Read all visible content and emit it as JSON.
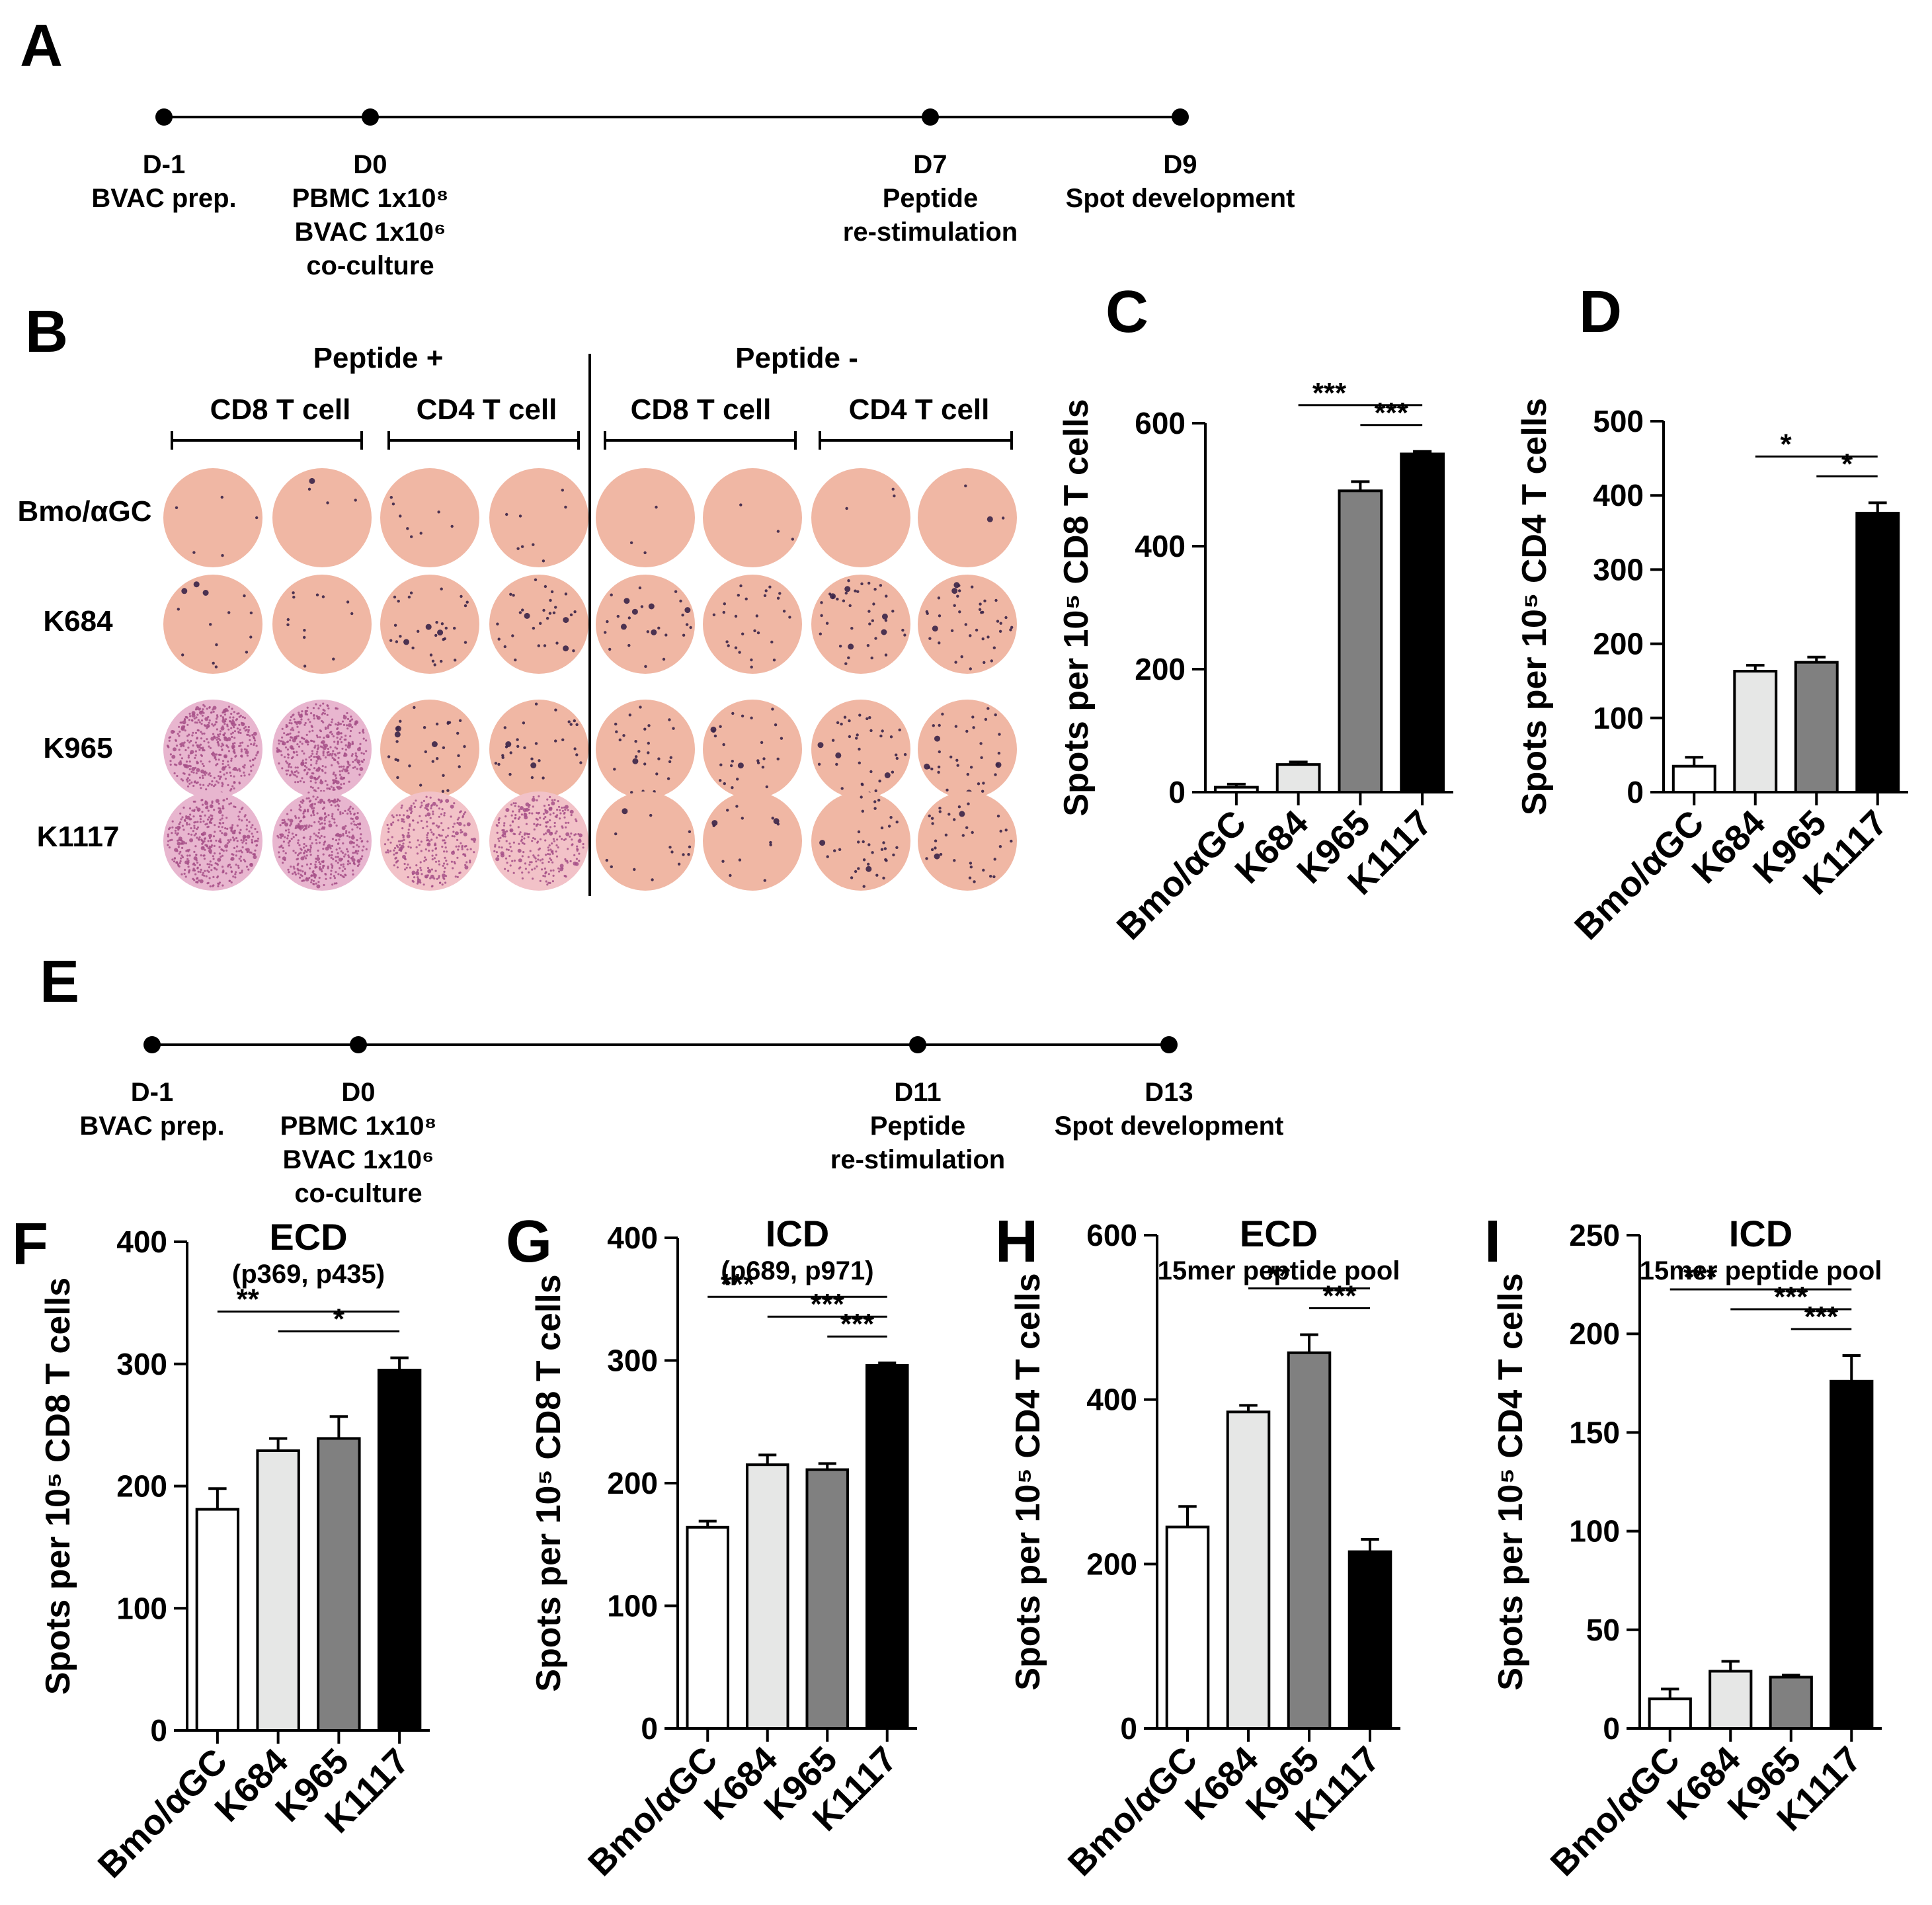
{
  "colors": {
    "white": "#ffffff",
    "light": "#e6e7e6",
    "mid": "#808080",
    "black": "#000000",
    "well": "#f0b7a4",
    "spot": "#3a2448",
    "dense": "#a64f87"
  },
  "timeline_a": {
    "label": "A",
    "points": [
      {
        "lines": [
          "D-1",
          "BVAC prep."
        ]
      },
      {
        "lines": [
          "D0",
          "PBMC 1x10⁸",
          "BVAC 1x10⁶",
          "co-culture"
        ]
      },
      {
        "lines": [
          "D7",
          "Peptide",
          "re-stimulation"
        ]
      },
      {
        "lines": [
          "D9",
          "Spot development"
        ]
      }
    ]
  },
  "timeline_e": {
    "label": "E",
    "points": [
      {
        "lines": [
          "D-1",
          "BVAC prep."
        ]
      },
      {
        "lines": [
          "D0",
          "PBMC 1x10⁸",
          "BVAC 1x10⁶",
          "co-culture"
        ]
      },
      {
        "lines": [
          "D11",
          "Peptide",
          "re-stimulation"
        ]
      },
      {
        "lines": [
          "D13",
          "Spot development"
        ]
      }
    ]
  },
  "elispot": {
    "label": "B",
    "group_labels": [
      "Peptide +",
      "Peptide -"
    ],
    "subgroups": [
      "CD8 T cell",
      "CD4 T cell",
      "CD8 T cell",
      "CD4 T cell"
    ],
    "rows": [
      "Bmo/αGC",
      "K684",
      "K965",
      "K1117"
    ]
  },
  "chart_data": [
    {
      "panel": "C",
      "type": "bar",
      "title": "",
      "subtitle": "",
      "ylabel": "Spots per 10⁵ CD8 T cells",
      "categories": [
        "Bmo/αGC",
        "K684",
        "K965",
        "K1117"
      ],
      "values": [
        8,
        45,
        490,
        550
      ],
      "errors": [
        5,
        4,
        15,
        4
      ],
      "ylim": [
        0,
        600
      ],
      "yticks": [
        0,
        200,
        400,
        600
      ],
      "significance": [
        {
          "from": 1,
          "to": 3,
          "label": "***"
        },
        {
          "from": 2,
          "to": 3,
          "label": "***"
        }
      ]
    },
    {
      "panel": "D",
      "type": "bar",
      "title": "",
      "subtitle": "",
      "ylabel": "Spots per 10⁵ CD4 T cells",
      "categories": [
        "Bmo/αGC",
        "K684",
        "K965",
        "K1117"
      ],
      "values": [
        35,
        163,
        175,
        376
      ],
      "errors": [
        12,
        8,
        7,
        14
      ],
      "ylim": [
        0,
        500
      ],
      "yticks": [
        0,
        100,
        200,
        300,
        400,
        500
      ],
      "significance": [
        {
          "from": 1,
          "to": 3,
          "label": "*"
        },
        {
          "from": 2,
          "to": 3,
          "label": "*"
        }
      ]
    },
    {
      "panel": "F",
      "type": "bar",
      "title": "ECD",
      "subtitle": "(p369, p435)",
      "ylabel": "Spots per 10⁵ CD8 T cells",
      "categories": [
        "Bmo/αGC",
        "K684",
        "K965",
        "K1117"
      ],
      "values": [
        181,
        229,
        239,
        295
      ],
      "errors": [
        17,
        10,
        18,
        10
      ],
      "ylim": [
        0,
        400
      ],
      "yticks": [
        0,
        100,
        200,
        300,
        400
      ],
      "significance": [
        {
          "from": 0,
          "to": 3,
          "label": "**"
        },
        {
          "from": 1,
          "to": 3,
          "label": "*"
        }
      ]
    },
    {
      "panel": "G",
      "type": "bar",
      "title": "ICD",
      "subtitle": "(p689, p971)",
      "ylabel": "Spots per 10⁵ CD8 T cells",
      "categories": [
        "Bmo/αGC",
        "K684",
        "K965",
        "K1117"
      ],
      "values": [
        164,
        215,
        211,
        296
      ],
      "errors": [
        5,
        8,
        5,
        2
      ],
      "ylim": [
        0,
        400
      ],
      "yticks": [
        0,
        100,
        200,
        300,
        400
      ],
      "significance": [
        {
          "from": 0,
          "to": 3,
          "label": "***"
        },
        {
          "from": 1,
          "to": 3,
          "label": "***"
        },
        {
          "from": 2,
          "to": 3,
          "label": "***"
        }
      ]
    },
    {
      "panel": "H",
      "type": "bar",
      "title": "ECD",
      "subtitle": "15mer peptide pool",
      "ylabel": "Spots per 10⁵ CD4 T cells",
      "categories": [
        "Bmo/αGC",
        "K684",
        "K965",
        "K1117"
      ],
      "values": [
        245,
        385,
        457,
        215
      ],
      "errors": [
        25,
        8,
        22,
        15
      ],
      "ylim": [
        0,
        600
      ],
      "yticks": [
        0,
        200,
        400,
        600
      ],
      "significance": [
        {
          "from": 1,
          "to": 3,
          "label": "**"
        },
        {
          "from": 2,
          "to": 3,
          "label": "***"
        }
      ]
    },
    {
      "panel": "I",
      "type": "bar",
      "title": "ICD",
      "subtitle": "15mer peptide pool",
      "ylabel": "Spots per 10⁵ CD4 T cells",
      "categories": [
        "Bmo/αGC",
        "K684",
        "K965",
        "K1117"
      ],
      "values": [
        15,
        29,
        26,
        176
      ],
      "errors": [
        5,
        5,
        1,
        13
      ],
      "ylim": [
        0,
        250
      ],
      "yticks": [
        0,
        50,
        100,
        150,
        200,
        250
      ],
      "significance": [
        {
          "from": 0,
          "to": 3,
          "label": "***"
        },
        {
          "from": 1,
          "to": 3,
          "label": "***"
        },
        {
          "from": 2,
          "to": 3,
          "label": "***"
        }
      ]
    }
  ]
}
